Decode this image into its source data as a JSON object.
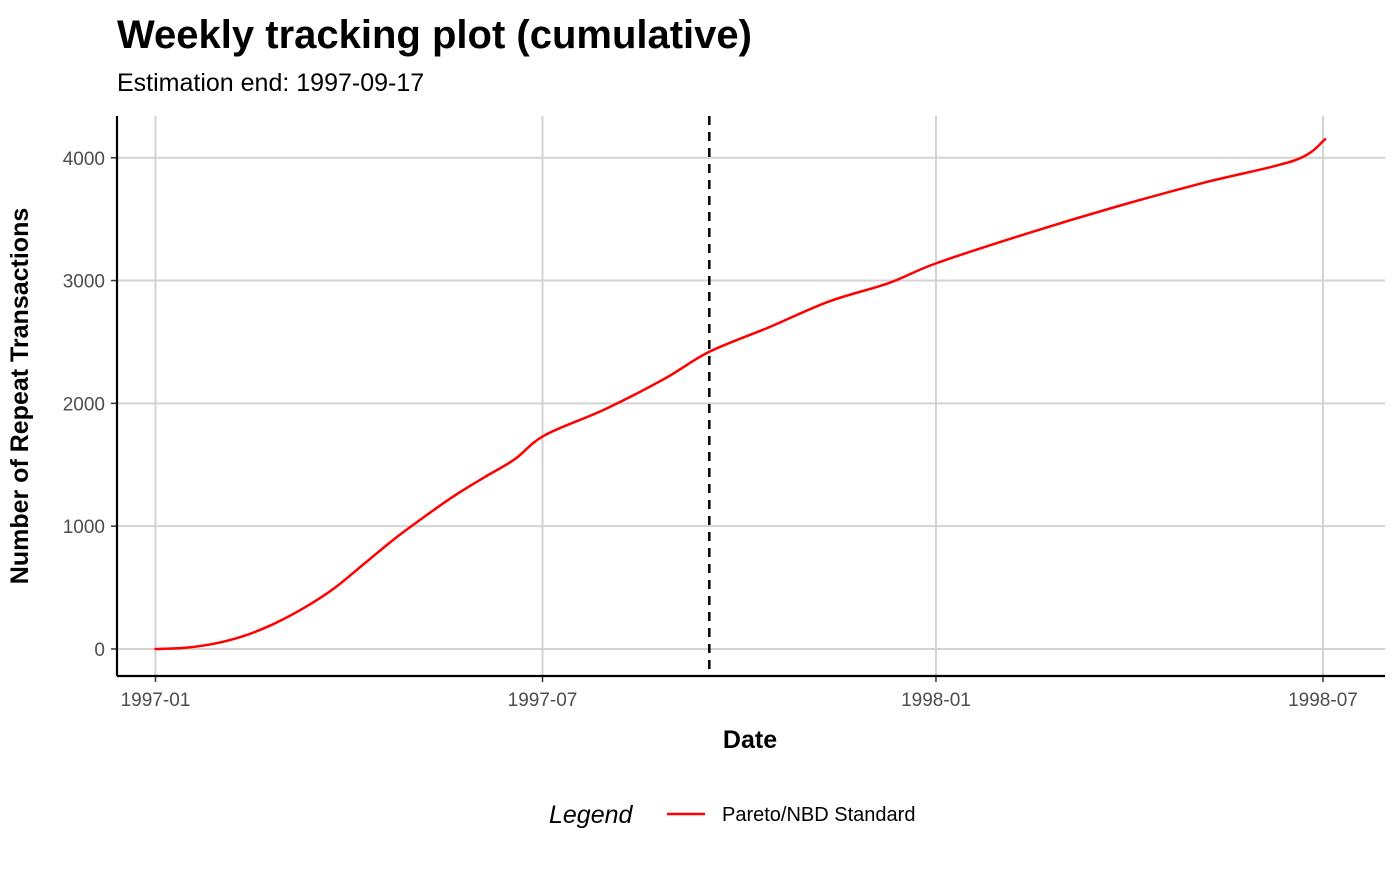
{
  "chart_data": {
    "type": "line",
    "title": "Weekly tracking plot (cumulative)",
    "subtitle": "Estimation end: 1997-09-17",
    "xlabel": "Date",
    "ylabel": "Number of Repeat Transactions",
    "x_ticks": [
      "1997-01",
      "1997-07",
      "1998-01",
      "1998-07"
    ],
    "y_ticks": [
      0,
      1000,
      2000,
      3000,
      4000
    ],
    "xlim": [
      "1996-12-14",
      "1998-07-30"
    ],
    "ylim": [
      -220,
      4340
    ],
    "grid": true,
    "vline": {
      "x": "1997-09-17",
      "style": "dashed",
      "color": "#000000"
    },
    "legend": {
      "title": "Legend",
      "position": "bottom"
    },
    "series": [
      {
        "name": "Pareto/NBD Standard",
        "color": "#ff0000",
        "points": [
          [
            "1997-01-01",
            0
          ],
          [
            "1997-01-15",
            10
          ],
          [
            "1997-01-29",
            45
          ],
          [
            "1997-02-12",
            110
          ],
          [
            "1997-02-26",
            210
          ],
          [
            "1997-03-12",
            340
          ],
          [
            "1997-03-26",
            500
          ],
          [
            "1997-04-09",
            700
          ],
          [
            "1997-04-23",
            900
          ],
          [
            "1997-05-07",
            1080
          ],
          [
            "1997-05-21",
            1250
          ],
          [
            "1997-06-04",
            1400
          ],
          [
            "1997-06-18",
            1545
          ],
          [
            "1997-07-02",
            1740
          ],
          [
            "1997-07-30",
            1950
          ],
          [
            "1997-08-27",
            2200
          ],
          [
            "1997-09-17",
            2420
          ],
          [
            "1997-10-15",
            2620
          ],
          [
            "1997-11-12",
            2830
          ],
          [
            "1997-12-10",
            2980
          ],
          [
            "1998-01-01",
            3140
          ],
          [
            "1998-02-12",
            3380
          ],
          [
            "1998-03-26",
            3600
          ],
          [
            "1998-05-07",
            3800
          ],
          [
            "1998-06-18",
            3980
          ],
          [
            "1998-07-02",
            4150
          ]
        ]
      }
    ]
  }
}
